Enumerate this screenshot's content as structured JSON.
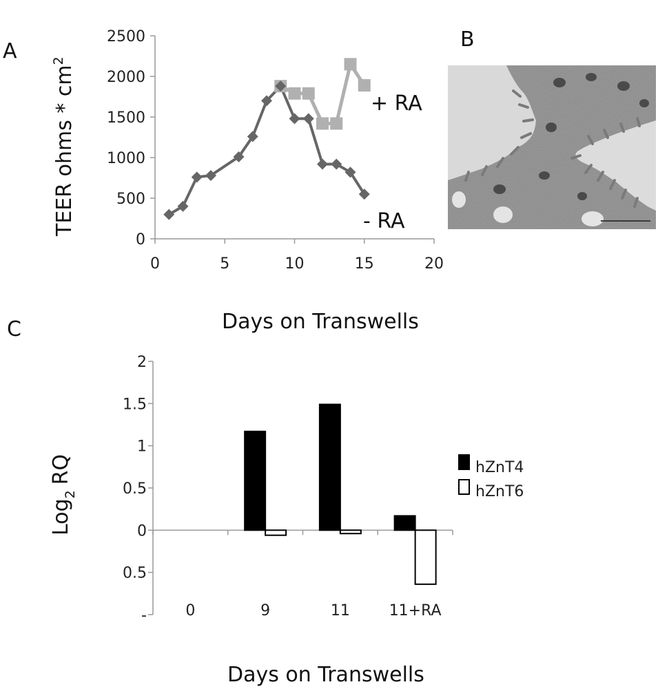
{
  "panels": {
    "a": "A",
    "b": "B",
    "c": "C"
  },
  "colors": {
    "minus_ra": "#666666",
    "plus_ra": "#b0b0b0",
    "hznt4": "#000000",
    "hznt6": "#ffffff",
    "axis": "#999999",
    "micrograph_bg": "#8a8a8a"
  },
  "chart_data": [
    {
      "type": "line",
      "panel": "A",
      "xlabel": "Days on Transwells",
      "ylabel_main": "TEER ohms * cm",
      "ylabel_sup": "2",
      "xlim": [
        0,
        20
      ],
      "ylim": [
        0,
        2500
      ],
      "xticks": [
        0,
        5,
        10,
        15,
        20
      ],
      "yticks": [
        0,
        500,
        1000,
        1500,
        2000,
        2500
      ],
      "grid": false,
      "series": [
        {
          "name": "- RA",
          "marker": "diamond",
          "x": [
            1,
            2,
            3,
            4,
            6,
            7,
            8,
            9,
            10,
            11,
            12,
            13,
            14,
            15
          ],
          "y": [
            300,
            400,
            760,
            780,
            1010,
            1260,
            1700,
            1880,
            1480,
            1480,
            920,
            920,
            820,
            550
          ]
        },
        {
          "name": "+ RA",
          "marker": "square",
          "x": [
            9,
            10,
            11,
            12,
            13,
            14,
            15
          ],
          "y": [
            1880,
            1790,
            1790,
            1420,
            1420,
            2150,
            1890
          ]
        }
      ]
    },
    {
      "type": "bar",
      "panel": "C",
      "xlabel": "Days on Transwells",
      "ylabel_main": "Log",
      "ylabel_sub": "2",
      "ylabel_tail": "RQ",
      "categories": [
        "0",
        "9",
        "11",
        "11+RA"
      ],
      "ylim": [
        -1,
        2
      ],
      "yticks": [
        {
          "value": 2,
          "label": "2"
        },
        {
          "value": 1.5,
          "label": "1.5"
        },
        {
          "value": 1,
          "label": "1"
        },
        {
          "value": 0.5,
          "label": "0.5"
        },
        {
          "value": 0,
          "label": "0"
        },
        {
          "value": -0.5,
          "label": "0.5"
        },
        {
          "value": -1,
          "label": "-"
        }
      ],
      "legend_position": "right",
      "grid": false,
      "series": [
        {
          "name": "hZnT4",
          "values": [
            0,
            1.17,
            1.49,
            0.17
          ]
        },
        {
          "name": "hZnT6",
          "values": [
            0,
            -0.06,
            -0.04,
            -0.64
          ]
        }
      ]
    }
  ]
}
